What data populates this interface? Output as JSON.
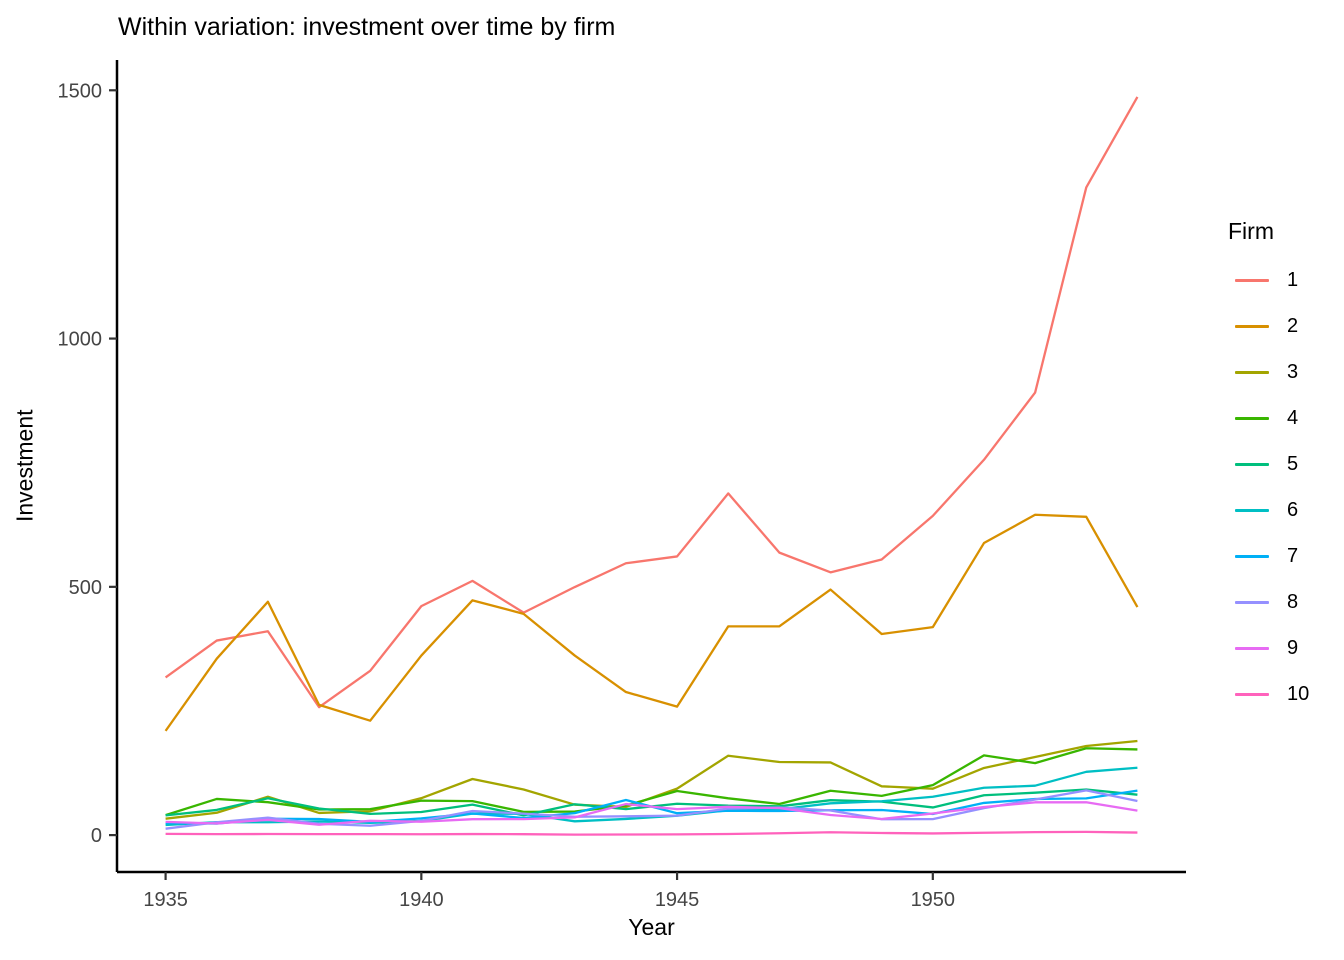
{
  "title": "Within variation: investment over time by firm",
  "axes": {
    "x_label": "Year",
    "y_label": "Investment"
  },
  "legend": {
    "title": "Firm",
    "position": "right"
  },
  "plot_style": {
    "background": "#FFFFFF",
    "axis_line_color": "#000000",
    "tick_label_color": "#454545",
    "grid": false
  },
  "chart_data": {
    "type": "line",
    "title": "Within variation: investment over time by firm",
    "xlabel": "Year",
    "ylabel": "Investment",
    "legend_title": "Firm",
    "legend_position": "right",
    "grid": false,
    "x": [
      1935,
      1936,
      1937,
      1938,
      1939,
      1940,
      1941,
      1942,
      1943,
      1944,
      1945,
      1946,
      1947,
      1948,
      1949,
      1950,
      1951,
      1952,
      1953,
      1954
    ],
    "x_ticks": [
      1935,
      1940,
      1945,
      1950
    ],
    "y_ticks": [
      0,
      500,
      1000,
      1500
    ],
    "xlim": [
      1934.05,
      1954.95
    ],
    "ylim": [
      -74.3,
      1561.0
    ],
    "series": [
      {
        "name": "1",
        "color": "#F8766D",
        "values": [
          317.6,
          391.8,
          410.6,
          257.7,
          330.8,
          461.2,
          512.0,
          448.0,
          499.6,
          547.5,
          561.2,
          688.1,
          568.9,
          529.2,
          555.1,
          642.9,
          755.9,
          891.2,
          1304.4,
          1486.7
        ]
      },
      {
        "name": "2",
        "color": "#D89000",
        "values": [
          209.9,
          355.3,
          469.9,
          262.3,
          230.4,
          361.6,
          472.8,
          445.6,
          361.6,
          288.2,
          258.7,
          420.3,
          420.5,
          494.5,
          405.1,
          418.8,
          588.2,
          645.2,
          641.0,
          459.3
        ]
      },
      {
        "name": "3",
        "color": "#A3A500",
        "values": [
          33.1,
          45.0,
          77.2,
          44.6,
          48.1,
          74.4,
          113.0,
          91.9,
          61.3,
          56.8,
          93.6,
          159.9,
          147.2,
          146.3,
          98.3,
          93.5,
          135.2,
          157.3,
          179.5,
          189.6
        ]
      },
      {
        "name": "4",
        "color": "#39B600",
        "values": [
          40.3,
          72.8,
          66.3,
          51.6,
          52.4,
          69.4,
          68.4,
          46.8,
          47.4,
          59.6,
          88.8,
          74.1,
          62.7,
          89.4,
          79.0,
          100.7,
          160.6,
          145.0,
          174.9,
          172.5
        ]
      },
      {
        "name": "5",
        "color": "#00BF7D",
        "values": [
          39.7,
          50.7,
          74.2,
          53.5,
          42.7,
          46.5,
          61.4,
          39.7,
          62.2,
          52.3,
          63.2,
          59.4,
          58.0,
          70.3,
          67.4,
          55.7,
          80.3,
          85.4,
          91.9,
          81.4
        ]
      },
      {
        "name": "6",
        "color": "#00BFC4",
        "values": [
          20.4,
          26.0,
          25.9,
          27.5,
          24.6,
          28.5,
          43.4,
          42.8,
          27.8,
          32.6,
          39.0,
          50.2,
          51.9,
          64.0,
          68.2,
          77.3,
          95.3,
          99.5,
          127.5,
          135.7
        ]
      },
      {
        "name": "7",
        "color": "#00B0F6",
        "values": [
          24.4,
          23.2,
          32.8,
          32.5,
          26.7,
          33.7,
          43.5,
          34.5,
          44.3,
          70.8,
          44.1,
          49.0,
          48.5,
          50.0,
          50.6,
          42.5,
          64.8,
          72.7,
          73.9,
          89.5
        ]
      },
      {
        "name": "8",
        "color": "#9590FF",
        "values": [
          12.9,
          25.9,
          35.1,
          22.9,
          18.8,
          28.6,
          48.5,
          43.3,
          37.0,
          37.8,
          39.3,
          53.5,
          55.6,
          49.6,
          32.0,
          32.2,
          54.4,
          71.8,
          90.1,
          68.6
        ]
      },
      {
        "name": "9",
        "color": "#E76BF3",
        "values": [
          26.6,
          23.4,
          30.7,
          20.9,
          28.8,
          26.9,
          32.1,
          32.2,
          35.7,
          62.5,
          52.3,
          57.0,
          54.3,
          40.5,
          32.5,
          43.5,
          56.5,
          66.0,
          66.1,
          49.3
        ]
      },
      {
        "name": "10",
        "color": "#FF62BC",
        "values": [
          2.5,
          2.0,
          2.2,
          2.0,
          2.0,
          1.8,
          2.1,
          1.9,
          0.9,
          1.2,
          1.4,
          2.2,
          3.8,
          5.7,
          4.2,
          3.4,
          4.7,
          6.0,
          6.5,
          5.1
        ]
      }
    ]
  }
}
